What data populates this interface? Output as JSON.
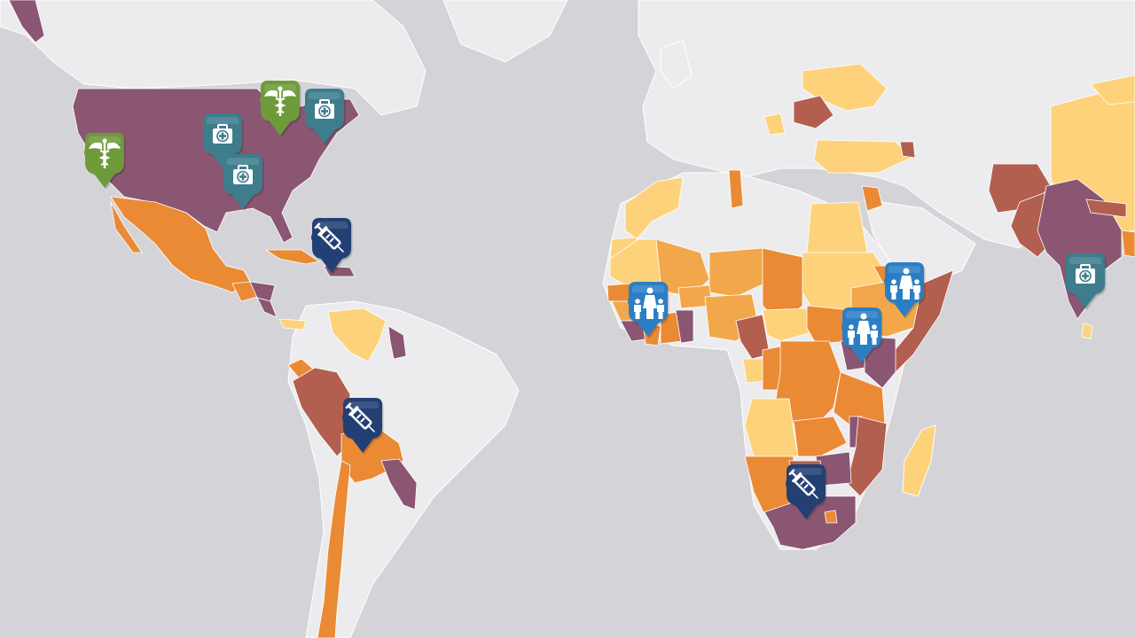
{
  "map": {
    "colors": {
      "ocean": "#d4d4d8",
      "land": "#ececee",
      "border": "#ffffff",
      "plum": "#8a5672",
      "rust": "#b25f4f",
      "orange": "#ea8a34",
      "amber": "#f2a84a",
      "yellow": "#fdd27a"
    },
    "markers": [
      {
        "id": "caduceus-california",
        "type": "caduceus",
        "color": "#6f9a3a",
        "icon": "caduceus-icon"
      },
      {
        "id": "caduceus-great-lakes",
        "type": "caduceus",
        "color": "#6f9a3a",
        "icon": "caduceus-icon"
      },
      {
        "id": "medkit-us-central",
        "type": "medkit",
        "color": "#3d7d8c",
        "icon": "medical-kit-icon"
      },
      {
        "id": "medkit-us-south",
        "type": "medkit",
        "color": "#3d7d8c",
        "icon": "medical-kit-icon"
      },
      {
        "id": "medkit-us-northeast",
        "type": "medkit",
        "color": "#3d7d8c",
        "icon": "medical-kit-icon"
      },
      {
        "id": "medkit-india",
        "type": "medkit",
        "color": "#3d7d8c",
        "icon": "medical-kit-icon"
      },
      {
        "id": "vaccine-haiti",
        "type": "vaccine",
        "color": "#233f73",
        "icon": "syringe-icon"
      },
      {
        "id": "vaccine-bolivia",
        "type": "vaccine",
        "color": "#233f73",
        "icon": "syringe-icon"
      },
      {
        "id": "vaccine-south-africa",
        "type": "vaccine",
        "color": "#233f73",
        "icon": "syringe-icon"
      },
      {
        "id": "family-west-africa",
        "type": "family",
        "color": "#2c7ec4",
        "icon": "family-icon"
      },
      {
        "id": "family-ethiopia",
        "type": "family",
        "color": "#2c7ec4",
        "icon": "family-icon"
      },
      {
        "id": "family-east-africa",
        "type": "family",
        "color": "#2c7ec4",
        "icon": "family-icon"
      }
    ]
  }
}
